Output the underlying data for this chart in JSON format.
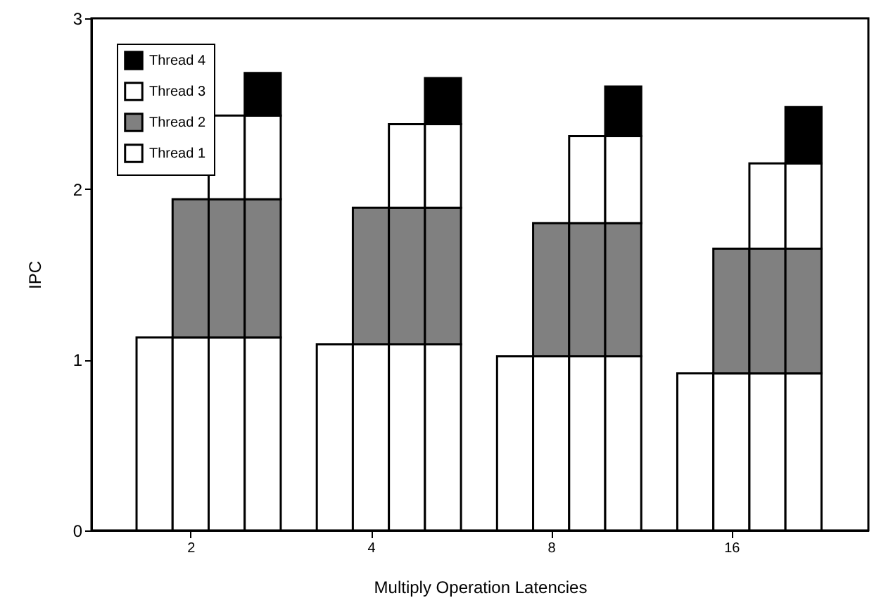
{
  "chart_data": {
    "type": "bar",
    "stacked": true,
    "xlabel": "Multiply Operation Latencies",
    "ylabel": "IPC",
    "categories": [
      null,
      "2",
      null,
      null,
      null,
      "4",
      null,
      null,
      null,
      "8",
      null,
      null,
      null,
      "16",
      null,
      null
    ],
    "series": [
      {
        "name": "Thread 1",
        "color": "#ffffff",
        "values": [
          1.13,
          1.13,
          1.13,
          1.13,
          1.09,
          1.09,
          1.09,
          1.09,
          1.02,
          1.02,
          1.02,
          1.02,
          0.92,
          0.92,
          0.92,
          0.92
        ]
      },
      {
        "name": "Thread 2",
        "color": "#808080",
        "values": [
          null,
          0.81,
          0.81,
          0.81,
          null,
          0.8,
          0.8,
          0.8,
          null,
          0.78,
          0.78,
          0.78,
          null,
          0.73,
          0.73,
          0.73
        ]
      },
      {
        "name": "Thread 3",
        "color": "#ffffff",
        "values": [
          null,
          null,
          0.49,
          0.49,
          null,
          null,
          0.49,
          0.49,
          null,
          null,
          0.51,
          0.51,
          null,
          null,
          0.5,
          0.5
        ]
      },
      {
        "name": "Thread 4",
        "color": "#000000",
        "values": [
          null,
          null,
          null,
          0.25,
          null,
          null,
          null,
          0.27,
          null,
          null,
          null,
          0.29,
          null,
          null,
          null,
          0.33
        ]
      }
    ],
    "ylim": [
      0,
      3
    ],
    "yticks": [
      0,
      1,
      2,
      3
    ],
    "grid": false,
    "legend": "top left"
  }
}
